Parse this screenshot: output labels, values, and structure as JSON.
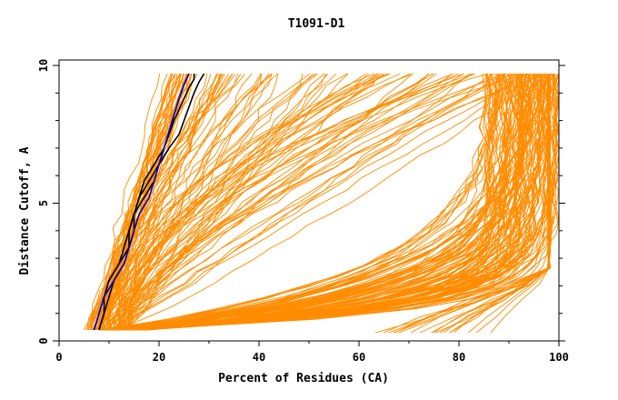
{
  "chart_data": {
    "type": "line",
    "title": "T1091-D1",
    "xlabel": "Percent of Residues (CA)",
    "ylabel": "Distance Cutoff, A",
    "xlim": [
      0,
      100
    ],
    "ylim": [
      0,
      10
    ],
    "x_ticks": [
      0,
      20,
      40,
      60,
      80,
      100
    ],
    "y_ticks": [
      0,
      5,
      10
    ],
    "grid": false,
    "legend": "none",
    "colors": {
      "models": "#ff8c00",
      "highlight_black": "#000000",
      "highlight_blue": "#0000cc"
    },
    "series": [
      {
        "group": "highlight",
        "color": "#000000",
        "x": [
          8,
          9,
          10,
          11,
          13,
          14,
          15,
          15,
          16,
          17,
          19,
          21,
          22,
          23,
          24,
          25,
          26,
          27,
          27
        ],
        "y": [
          0.4,
          1.0,
          1.6,
          2.2,
          2.8,
          3.4,
          4.0,
          4.6,
          5.2,
          5.8,
          6.4,
          7.0,
          7.5,
          8.0,
          8.4,
          8.8,
          9.2,
          9.5,
          9.7
        ]
      },
      {
        "group": "highlight",
        "color": "#000000",
        "x": [
          7,
          8,
          9,
          10,
          12,
          13,
          14,
          15,
          16,
          18,
          20,
          22,
          24,
          25,
          26,
          27,
          28,
          29
        ],
        "y": [
          0.4,
          1.0,
          1.6,
          2.2,
          2.8,
          3.4,
          4.0,
          4.6,
          5.2,
          5.8,
          6.4,
          7.0,
          7.5,
          8.0,
          8.5,
          9.0,
          9.4,
          9.7
        ]
      },
      {
        "group": "highlight",
        "color": "#000000",
        "x": [
          8,
          9,
          9,
          10,
          12,
          14,
          14,
          15,
          17,
          19,
          20,
          21,
          22,
          23,
          24,
          25,
          26
        ],
        "y": [
          0.4,
          1.0,
          1.6,
          2.2,
          2.8,
          3.4,
          4.0,
          4.6,
          5.2,
          5.8,
          6.4,
          7.0,
          7.6,
          8.2,
          8.8,
          9.3,
          9.7
        ]
      },
      {
        "group": "highlight",
        "color": "#0000cc",
        "x": [
          7,
          8,
          9,
          11,
          13,
          14,
          15,
          16,
          18,
          19,
          20,
          21,
          22,
          23,
          24,
          25,
          26
        ],
        "y": [
          0.4,
          1.0,
          1.6,
          2.2,
          2.8,
          3.4,
          4.0,
          4.6,
          5.2,
          5.8,
          6.4,
          7.0,
          7.6,
          8.2,
          8.8,
          9.3,
          9.7
        ]
      }
    ]
  }
}
